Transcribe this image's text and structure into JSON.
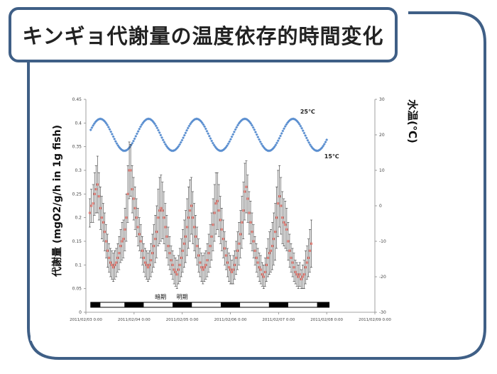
{
  "title": "キンギョ代謝量の温度依存的時間変化",
  "colors": {
    "frame": "#3f5f86",
    "metabolism": "#e0837c",
    "temperature": "#5b8fd0",
    "errorbar": "#333333"
  },
  "chart_data": {
    "type": "scatter",
    "ylabel_left": "代謝量 (mgO2/g/h in 1g fish)",
    "ylabel_right": "水温(℃)",
    "xlabel": "",
    "x_ticks": [
      "2011/02/03 0:00",
      "2011/02/04 0:00",
      "2011/02/05 0:00",
      "2011/02/06 0:00",
      "2011/02/07 0:00",
      "2011/02/08 0:00",
      "2011/02/09 0:00"
    ],
    "xlim_days": [
      0,
      6
    ],
    "y_left_ticks": [
      "0",
      "0.05",
      "0.1",
      "0.15",
      "0.2",
      "0.25",
      "0.3",
      "0.35",
      "0.4",
      "0.45"
    ],
    "ylim_left": [
      0,
      0.45
    ],
    "y_right_ticks": [
      "-30",
      "-20",
      "-10",
      "0",
      "10",
      "20",
      "30"
    ],
    "ylim_right": [
      -30,
      30
    ],
    "annotations": {
      "temp_high": "25℃",
      "temp_low": "15℃",
      "dark_period": "暗期",
      "light_period": "明期"
    },
    "series": [
      {
        "name": "水温",
        "axis": "right",
        "marker": "diamond",
        "start_day": 0.1,
        "end_day": 5.0,
        "mean": 20.0,
        "amplitude": 4.5,
        "period_days": 1.0,
        "phase_peak_day": 0.3,
        "n_points": 200
      },
      {
        "name": "代謝量",
        "axis": "left",
        "marker": "square",
        "points": [
          [
            0.08,
            0.21,
            0.03
          ],
          [
            0.11,
            0.225,
            0.035
          ],
          [
            0.15,
            0.23,
            0.04
          ],
          [
            0.18,
            0.25,
            0.045
          ],
          [
            0.21,
            0.26,
            0.05
          ],
          [
            0.24,
            0.27,
            0.06
          ],
          [
            0.27,
            0.245,
            0.05
          ],
          [
            0.3,
            0.22,
            0.045
          ],
          [
            0.33,
            0.2,
            0.045
          ],
          [
            0.36,
            0.19,
            0.04
          ],
          [
            0.39,
            0.17,
            0.04
          ],
          [
            0.42,
            0.15,
            0.035
          ],
          [
            0.45,
            0.13,
            0.035
          ],
          [
            0.48,
            0.115,
            0.03
          ],
          [
            0.51,
            0.105,
            0.03
          ],
          [
            0.54,
            0.1,
            0.03
          ],
          [
            0.57,
            0.095,
            0.03
          ],
          [
            0.6,
            0.1,
            0.03
          ],
          [
            0.63,
            0.105,
            0.03
          ],
          [
            0.66,
            0.115,
            0.03
          ],
          [
            0.69,
            0.125,
            0.035
          ],
          [
            0.72,
            0.14,
            0.035
          ],
          [
            0.75,
            0.15,
            0.04
          ],
          [
            0.78,
            0.155,
            0.04
          ],
          [
            0.81,
            0.175,
            0.045
          ],
          [
            0.84,
            0.2,
            0.05
          ],
          [
            0.87,
            0.25,
            0.06
          ],
          [
            0.9,
            0.3,
            0.06
          ],
          [
            0.93,
            0.3,
            0.055
          ],
          [
            0.96,
            0.26,
            0.05
          ],
          [
            0.99,
            0.24,
            0.045
          ],
          [
            1.02,
            0.22,
            0.045
          ],
          [
            1.05,
            0.2,
            0.04
          ],
          [
            1.08,
            0.18,
            0.04
          ],
          [
            1.11,
            0.165,
            0.035
          ],
          [
            1.14,
            0.15,
            0.035
          ],
          [
            1.17,
            0.13,
            0.03
          ],
          [
            1.2,
            0.115,
            0.03
          ],
          [
            1.23,
            0.105,
            0.03
          ],
          [
            1.26,
            0.1,
            0.03
          ],
          [
            1.29,
            0.095,
            0.03
          ],
          [
            1.32,
            0.1,
            0.03
          ],
          [
            1.35,
            0.11,
            0.035
          ],
          [
            1.38,
            0.125,
            0.04
          ],
          [
            1.41,
            0.14,
            0.045
          ],
          [
            1.44,
            0.155,
            0.05
          ],
          [
            1.47,
            0.17,
            0.055
          ],
          [
            1.5,
            0.2,
            0.06
          ],
          [
            1.53,
            0.215,
            0.07
          ],
          [
            1.56,
            0.22,
            0.07
          ],
          [
            1.59,
            0.215,
            0.06
          ],
          [
            1.62,
            0.2,
            0.055
          ],
          [
            1.65,
            0.18,
            0.05
          ],
          [
            1.68,
            0.16,
            0.045
          ],
          [
            1.71,
            0.14,
            0.04
          ],
          [
            1.74,
            0.125,
            0.035
          ],
          [
            1.77,
            0.11,
            0.03
          ],
          [
            1.8,
            0.1,
            0.03
          ],
          [
            1.83,
            0.09,
            0.03
          ],
          [
            1.86,
            0.085,
            0.03
          ],
          [
            1.89,
            0.08,
            0.03
          ],
          [
            1.92,
            0.09,
            0.03
          ],
          [
            1.95,
            0.1,
            0.035
          ],
          [
            1.98,
            0.115,
            0.04
          ],
          [
            2.01,
            0.13,
            0.045
          ],
          [
            2.04,
            0.145,
            0.05
          ],
          [
            2.07,
            0.16,
            0.055
          ],
          [
            2.1,
            0.18,
            0.06
          ],
          [
            2.13,
            0.2,
            0.065
          ],
          [
            2.16,
            0.215,
            0.065
          ],
          [
            2.19,
            0.225,
            0.06
          ],
          [
            2.22,
            0.2,
            0.055
          ],
          [
            2.25,
            0.18,
            0.05
          ],
          [
            2.28,
            0.16,
            0.045
          ],
          [
            2.31,
            0.14,
            0.04
          ],
          [
            2.34,
            0.12,
            0.035
          ],
          [
            2.37,
            0.105,
            0.03
          ],
          [
            2.4,
            0.095,
            0.03
          ],
          [
            2.43,
            0.09,
            0.03
          ],
          [
            2.46,
            0.095,
            0.03
          ],
          [
            2.49,
            0.1,
            0.03
          ],
          [
            2.52,
            0.11,
            0.035
          ],
          [
            2.55,
            0.125,
            0.04
          ],
          [
            2.58,
            0.14,
            0.045
          ],
          [
            2.61,
            0.16,
            0.05
          ],
          [
            2.64,
            0.185,
            0.055
          ],
          [
            2.67,
            0.21,
            0.06
          ],
          [
            2.7,
            0.23,
            0.065
          ],
          [
            2.73,
            0.235,
            0.06
          ],
          [
            2.76,
            0.215,
            0.055
          ],
          [
            2.79,
            0.195,
            0.05
          ],
          [
            2.82,
            0.175,
            0.045
          ],
          [
            2.85,
            0.155,
            0.04
          ],
          [
            2.88,
            0.135,
            0.035
          ],
          [
            2.91,
            0.12,
            0.03
          ],
          [
            2.94,
            0.105,
            0.03
          ],
          [
            2.97,
            0.095,
            0.03
          ],
          [
            3.0,
            0.09,
            0.03
          ],
          [
            3.03,
            0.085,
            0.025
          ],
          [
            3.06,
            0.09,
            0.03
          ],
          [
            3.09,
            0.1,
            0.03
          ],
          [
            3.12,
            0.115,
            0.035
          ],
          [
            3.15,
            0.13,
            0.04
          ],
          [
            3.18,
            0.145,
            0.045
          ],
          [
            3.21,
            0.165,
            0.05
          ],
          [
            3.24,
            0.19,
            0.055
          ],
          [
            3.27,
            0.215,
            0.06
          ],
          [
            3.3,
            0.255,
            0.06
          ],
          [
            3.33,
            0.265,
            0.055
          ],
          [
            3.36,
            0.24,
            0.05
          ],
          [
            3.39,
            0.21,
            0.045
          ],
          [
            3.42,
            0.19,
            0.045
          ],
          [
            3.45,
            0.17,
            0.04
          ],
          [
            3.48,
            0.15,
            0.035
          ],
          [
            3.51,
            0.13,
            0.03
          ],
          [
            3.54,
            0.115,
            0.03
          ],
          [
            3.57,
            0.105,
            0.03
          ],
          [
            3.6,
            0.095,
            0.03
          ],
          [
            3.63,
            0.09,
            0.03
          ],
          [
            3.66,
            0.08,
            0.025
          ],
          [
            3.69,
            0.075,
            0.025
          ],
          [
            3.72,
            0.085,
            0.03
          ],
          [
            3.75,
            0.1,
            0.035
          ],
          [
            3.78,
            0.115,
            0.04
          ],
          [
            3.81,
            0.125,
            0.045
          ],
          [
            3.84,
            0.13,
            0.045
          ],
          [
            3.87,
            0.14,
            0.05
          ],
          [
            3.9,
            0.155,
            0.055
          ],
          [
            3.93,
            0.17,
            0.06
          ],
          [
            3.96,
            0.2,
            0.065
          ],
          [
            3.99,
            0.23,
            0.07
          ],
          [
            4.02,
            0.245,
            0.065
          ],
          [
            4.05,
            0.225,
            0.06
          ],
          [
            4.08,
            0.2,
            0.055
          ],
          [
            4.11,
            0.19,
            0.05
          ],
          [
            4.14,
            0.185,
            0.05
          ],
          [
            4.17,
            0.175,
            0.045
          ],
          [
            4.2,
            0.15,
            0.04
          ],
          [
            4.23,
            0.13,
            0.035
          ],
          [
            4.26,
            0.115,
            0.03
          ],
          [
            4.29,
            0.105,
            0.03
          ],
          [
            4.32,
            0.095,
            0.03
          ],
          [
            4.35,
            0.085,
            0.025
          ],
          [
            4.38,
            0.08,
            0.025
          ],
          [
            4.41,
            0.075,
            0.025
          ],
          [
            4.44,
            0.08,
            0.025
          ],
          [
            4.47,
            0.07,
            0.02
          ],
          [
            4.5,
            0.075,
            0.025
          ],
          [
            4.53,
            0.08,
            0.03
          ],
          [
            4.56,
            0.095,
            0.035
          ],
          [
            4.59,
            0.105,
            0.035
          ],
          [
            4.62,
            0.115,
            0.04
          ],
          [
            4.65,
            0.13,
            0.045
          ],
          [
            4.68,
            0.145,
            0.05
          ]
        ]
      }
    ]
  }
}
